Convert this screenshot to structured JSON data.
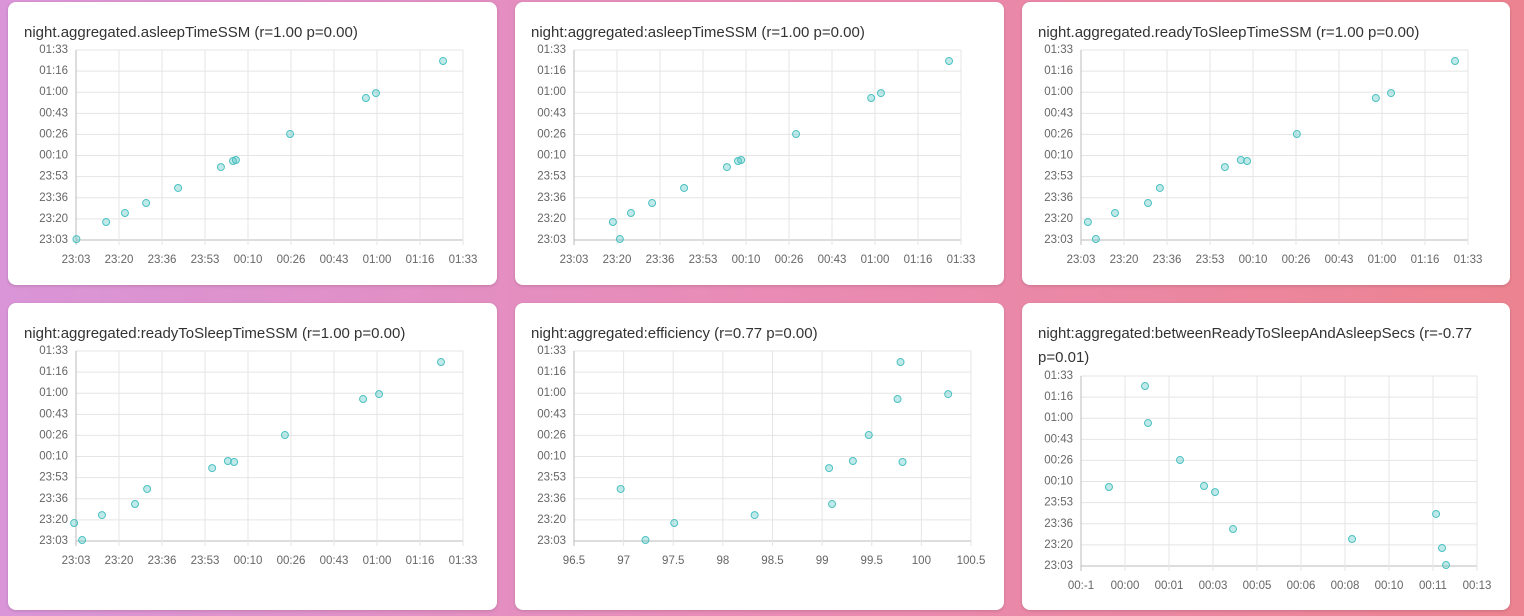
{
  "chart_data": [
    {
      "type": "scatter",
      "title": "night.aggregated.asleepTimeSSM (r=1.00 p=0.00)",
      "color": "#4bc0c0",
      "grid": true,
      "x": [
        -56.5,
        -45.0,
        -37.7,
        -29.5,
        -17.1,
        -0.5,
        4.2,
        5.3,
        26.3,
        55.7,
        59.6,
        85.6
      ],
      "values": [
        -56.0,
        -42.5,
        -35.4,
        -27.5,
        -15.6,
        0.9,
        5.7,
        6.5,
        27.0,
        55.4,
        59.3,
        84.6
      ],
      "xlim": [
        -56.67,
        93.33
      ],
      "ylim": [
        -56.67,
        93.33
      ],
      "xticks": [
        {
          "value": -56.67,
          "label": "23:03"
        },
        {
          "value": -40,
          "label": "23:20"
        },
        {
          "value": -23.33,
          "label": "23:36"
        },
        {
          "value": -6.67,
          "label": "23:53"
        },
        {
          "value": 10,
          "label": "00:10"
        },
        {
          "value": 26.67,
          "label": "00:26"
        },
        {
          "value": 43.33,
          "label": "00:43"
        },
        {
          "value": 60,
          "label": "01:00"
        },
        {
          "value": 76.67,
          "label": "01:16"
        },
        {
          "value": 93.33,
          "label": "01:33"
        }
      ],
      "yticks": [
        {
          "value": -56.67,
          "label": "23:03"
        },
        {
          "value": -40,
          "label": "23:20"
        },
        {
          "value": -23.33,
          "label": "23:36"
        },
        {
          "value": -6.67,
          "label": "23:53"
        },
        {
          "value": 10,
          "label": "00:10"
        },
        {
          "value": 26.67,
          "label": "00:26"
        },
        {
          "value": 43.33,
          "label": "00:43"
        },
        {
          "value": 60,
          "label": "01:00"
        },
        {
          "value": 76.67,
          "label": "01:16"
        },
        {
          "value": 93.33,
          "label": "01:33"
        }
      ]
    },
    {
      "type": "scatter",
      "title": "night:aggregated:asleepTimeSSM (r=1.00 p=0.00)",
      "color": "#4bc0c0",
      "grid": true,
      "x": [
        -41.6,
        -38.9,
        -34.6,
        -26.4,
        -14.0,
        2.6,
        6.9,
        8.1,
        29.4,
        58.5,
        62.3,
        88.7
      ],
      "values": [
        -42.5,
        -55.9,
        -35.4,
        -27.5,
        -15.6,
        0.9,
        5.7,
        6.5,
        27.0,
        55.4,
        59.3,
        84.6
      ],
      "xlim": [
        -56.67,
        93.33
      ],
      "ylim": [
        -56.67,
        93.33
      ],
      "xticks": [
        {
          "value": -56.67,
          "label": "23:03"
        },
        {
          "value": -40,
          "label": "23:20"
        },
        {
          "value": -23.33,
          "label": "23:36"
        },
        {
          "value": -6.67,
          "label": "23:53"
        },
        {
          "value": 10,
          "label": "00:10"
        },
        {
          "value": 26.67,
          "label": "00:26"
        },
        {
          "value": 43.33,
          "label": "00:43"
        },
        {
          "value": 60,
          "label": "01:00"
        },
        {
          "value": 76.67,
          "label": "01:16"
        },
        {
          "value": 93.33,
          "label": "01:33"
        }
      ],
      "yticks": [
        {
          "value": -56.67,
          "label": "23:03"
        },
        {
          "value": -40,
          "label": "23:20"
        },
        {
          "value": -23.33,
          "label": "23:36"
        },
        {
          "value": -6.67,
          "label": "23:53"
        },
        {
          "value": 10,
          "label": "00:10"
        },
        {
          "value": 26.67,
          "label": "00:26"
        },
        {
          "value": 43.33,
          "label": "00:43"
        },
        {
          "value": 60,
          "label": "01:00"
        },
        {
          "value": 76.67,
          "label": "01:16"
        },
        {
          "value": 93.33,
          "label": "01:33"
        }
      ]
    },
    {
      "type": "scatter",
      "title": "night.aggregated.readyToSleepTimeSSM (r=1.00 p=0.00)",
      "color": "#4bc0c0",
      "grid": true,
      "x": [
        -54.0,
        -50.9,
        -43.5,
        -30.7,
        -26.1,
        -0.9,
        5.3,
        7.7,
        27.0,
        57.6,
        63.5,
        88.3
      ],
      "values": [
        -42.5,
        -55.9,
        -35.4,
        -27.5,
        -15.6,
        0.9,
        6.5,
        5.7,
        27.0,
        55.4,
        59.3,
        84.6
      ],
      "xlim": [
        -56.67,
        93.33
      ],
      "ylim": [
        -56.67,
        93.33
      ],
      "xticks": [
        {
          "value": -56.67,
          "label": "23:03"
        },
        {
          "value": -40,
          "label": "23:20"
        },
        {
          "value": -23.33,
          "label": "23:36"
        },
        {
          "value": -6.67,
          "label": "23:53"
        },
        {
          "value": 10,
          "label": "00:10"
        },
        {
          "value": 26.67,
          "label": "00:26"
        },
        {
          "value": 43.33,
          "label": "00:43"
        },
        {
          "value": 60,
          "label": "01:00"
        },
        {
          "value": 76.67,
          "label": "01:16"
        },
        {
          "value": 93.33,
          "label": "01:33"
        }
      ],
      "yticks": [
        {
          "value": -56.67,
          "label": "23:03"
        },
        {
          "value": -40,
          "label": "23:20"
        },
        {
          "value": -23.33,
          "label": "23:36"
        },
        {
          "value": -6.67,
          "label": "23:53"
        },
        {
          "value": 10,
          "label": "00:10"
        },
        {
          "value": 26.67,
          "label": "00:26"
        },
        {
          "value": 43.33,
          "label": "00:43"
        },
        {
          "value": 60,
          "label": "01:00"
        },
        {
          "value": 76.67,
          "label": "01:16"
        },
        {
          "value": 93.33,
          "label": "01:33"
        }
      ]
    },
    {
      "type": "scatter",
      "title": "night:aggregated:readyToSleepTimeSSM (r=1.00 p=0.00)",
      "color": "#4bc0c0",
      "grid": true,
      "x": [
        -57.4,
        -54.3,
        -46.6,
        -33.8,
        -29.1,
        -3.9,
        2.2,
        4.6,
        24.3,
        54.6,
        60.8,
        84.8
      ],
      "values": [
        -42.5,
        -55.9,
        -36.2,
        -27.5,
        -15.6,
        0.9,
        6.5,
        5.7,
        27.0,
        55.4,
        59.3,
        84.6
      ],
      "xlim": [
        -56.67,
        93.33
      ],
      "ylim": [
        -56.67,
        93.33
      ],
      "xticks": [
        {
          "value": -56.67,
          "label": "23:03"
        },
        {
          "value": -40,
          "label": "23:20"
        },
        {
          "value": -23.33,
          "label": "23:36"
        },
        {
          "value": -6.67,
          "label": "23:53"
        },
        {
          "value": 10,
          "label": "00:10"
        },
        {
          "value": 26.67,
          "label": "00:26"
        },
        {
          "value": 43.33,
          "label": "00:43"
        },
        {
          "value": 60,
          "label": "01:00"
        },
        {
          "value": 76.67,
          "label": "01:16"
        },
        {
          "value": 93.33,
          "label": "01:33"
        }
      ],
      "yticks": [
        {
          "value": -56.67,
          "label": "23:03"
        },
        {
          "value": -40,
          "label": "23:20"
        },
        {
          "value": -23.33,
          "label": "23:36"
        },
        {
          "value": -6.67,
          "label": "23:53"
        },
        {
          "value": 10,
          "label": "00:10"
        },
        {
          "value": 26.67,
          "label": "00:26"
        },
        {
          "value": 43.33,
          "label": "00:43"
        },
        {
          "value": 60,
          "label": "01:00"
        },
        {
          "value": 76.67,
          "label": "01:16"
        },
        {
          "value": 93.33,
          "label": "01:33"
        }
      ]
    },
    {
      "type": "scatter",
      "title": "night:aggregated:efficiency (r=0.77 p=0.00)",
      "color": "#4bc0c0",
      "grid": true,
      "x": [
        96.97,
        97.22,
        97.51,
        98.32,
        99.07,
        99.1,
        99.31,
        99.47,
        99.76,
        99.79,
        99.81,
        100.27
      ],
      "values": [
        -15.6,
        -55.9,
        -42.5,
        -36.2,
        0.9,
        -27.5,
        6.5,
        27.0,
        55.4,
        84.6,
        5.7,
        59.3
      ],
      "xlim": [
        96.5,
        100.5
      ],
      "ylim": [
        -56.67,
        93.33
      ],
      "xticks": [
        96.5,
        97,
        97.5,
        98,
        98.5,
        99,
        99.5,
        100,
        100.5
      ],
      "yticks": [
        {
          "value": -56.67,
          "label": "23:03"
        },
        {
          "value": -40,
          "label": "23:20"
        },
        {
          "value": -23.33,
          "label": "23:36"
        },
        {
          "value": -6.67,
          "label": "23:53"
        },
        {
          "value": 10,
          "label": "00:10"
        },
        {
          "value": 26.67,
          "label": "00:26"
        },
        {
          "value": 43.33,
          "label": "00:43"
        },
        {
          "value": 60,
          "label": "01:00"
        },
        {
          "value": 76.67,
          "label": "01:16"
        },
        {
          "value": 93.33,
          "label": "01:33"
        }
      ]
    },
    {
      "type": "scatter",
      "title": "night:aggregated:betweenReadyToSleepAndAsleepSecs (r=-0.77 p=0.01)",
      "color": "#4bc0c0",
      "grid": true,
      "x": [
        -36.4,
        45.5,
        52.3,
        125,
        179.6,
        204.6,
        245.5,
        516,
        707,
        720.5,
        729.6
      ],
      "values": [
        5.7,
        85.4,
        56.2,
        27.0,
        6.5,
        1.7,
        -27.5,
        -35.4,
        -15.6,
        -42.5,
        -55.9
      ],
      "xlim": [
        -100,
        800
      ],
      "ylim": [
        -56.67,
        93.33
      ],
      "xticks": [
        {
          "value": -100,
          "label": "00:-1"
        },
        {
          "value": 0,
          "label": "00:00"
        },
        {
          "value": 100,
          "label": "00:01"
        },
        {
          "value": 200,
          "label": "00:03"
        },
        {
          "value": 300,
          "label": "00:05"
        },
        {
          "value": 400,
          "label": "00:06"
        },
        {
          "value": 500,
          "label": "00:08"
        },
        {
          "value": 600,
          "label": "00:10"
        },
        {
          "value": 700,
          "label": "00:11"
        },
        {
          "value": 800,
          "label": "00:13"
        }
      ],
      "yticks": [
        {
          "value": -56.67,
          "label": "23:03"
        },
        {
          "value": -40,
          "label": "23:20"
        },
        {
          "value": -23.33,
          "label": "23:36"
        },
        {
          "value": -6.67,
          "label": "23:53"
        },
        {
          "value": 10,
          "label": "00:10"
        },
        {
          "value": 26.67,
          "label": "00:26"
        },
        {
          "value": 43.33,
          "label": "00:43"
        },
        {
          "value": 60,
          "label": "01:00"
        },
        {
          "value": 76.67,
          "label": "01:16"
        },
        {
          "value": 93.33,
          "label": "01:33"
        }
      ]
    }
  ]
}
